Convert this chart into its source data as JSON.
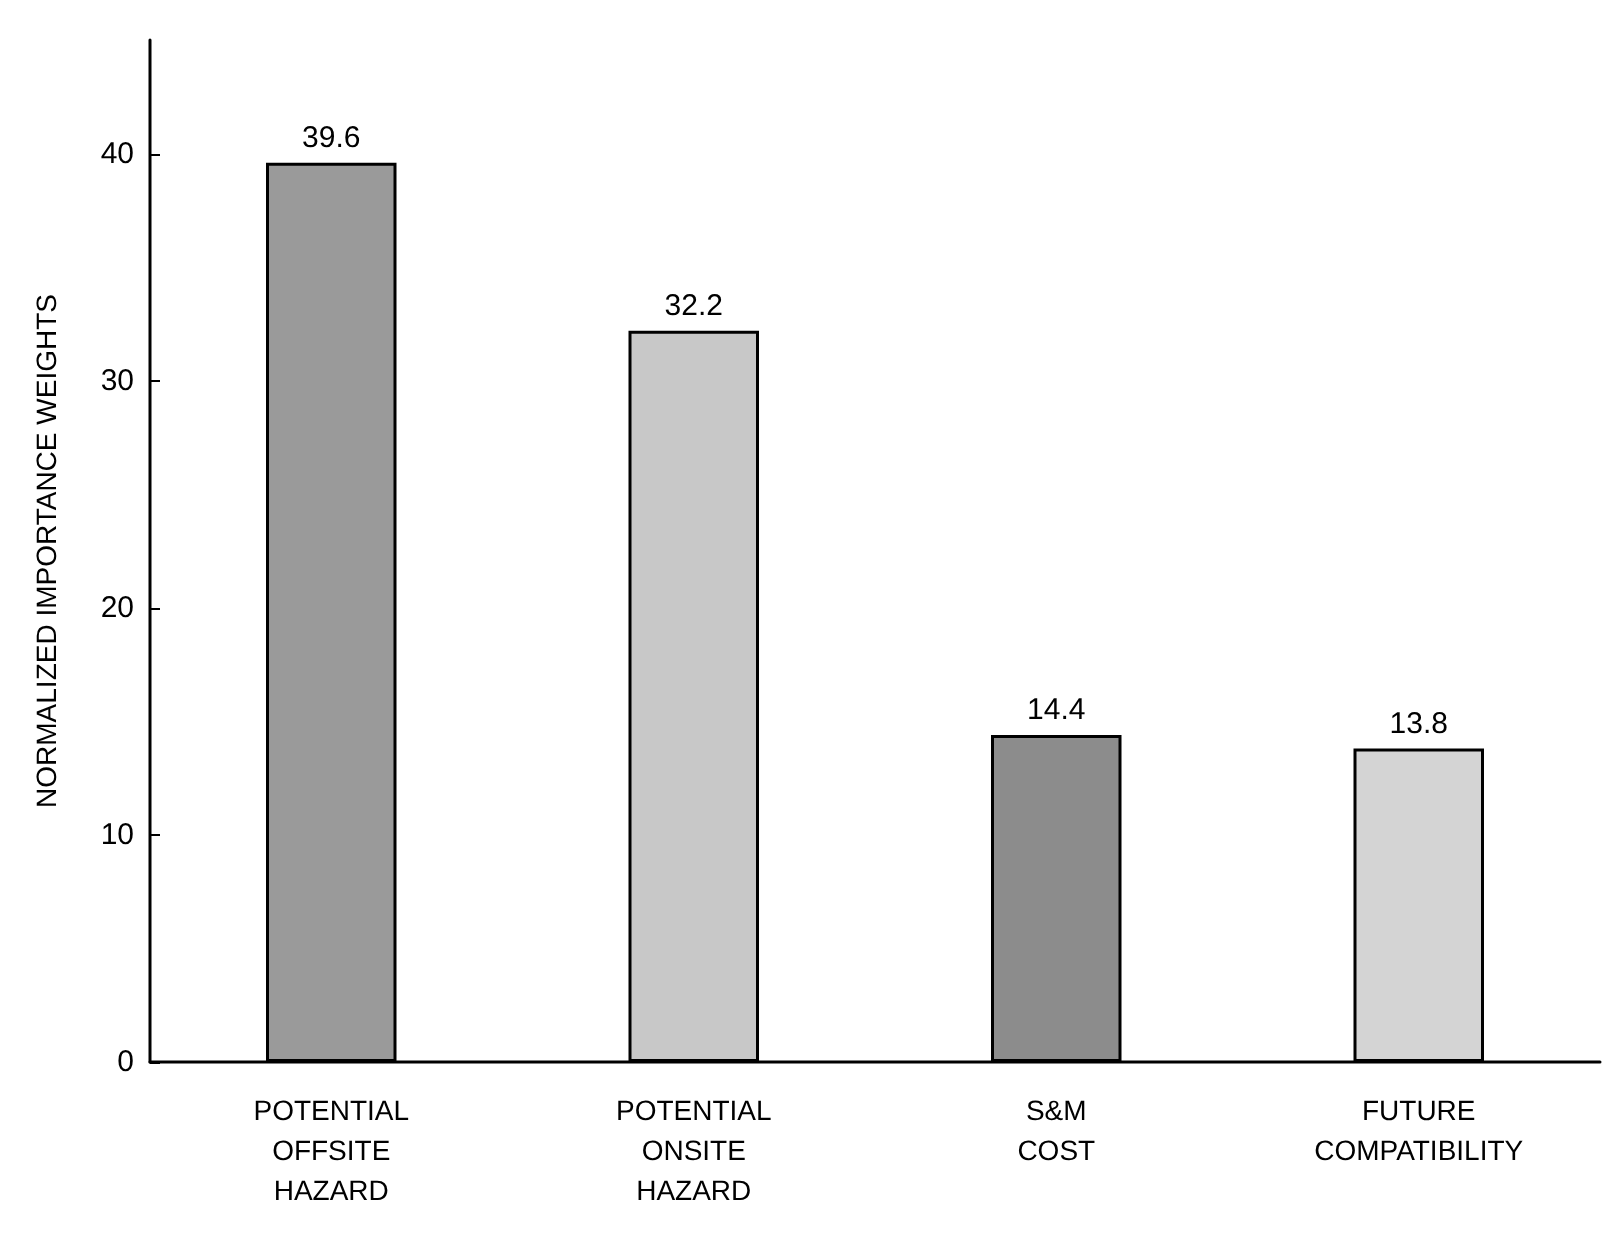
{
  "chart_data": {
    "type": "bar",
    "ylabel": "NORMALIZED IMPORTANCE WEIGHTS",
    "categories": [
      "POTENTIAL\nOFFSITE\nHAZARD",
      "POTENTIAL\nONSITE\nHAZARD",
      "S&M\nCOST",
      "FUTURE\nCOMPATIBILITY"
    ],
    "values": [
      39.6,
      32.2,
      14.4,
      13.8
    ],
    "colors": [
      "#9a9a9a",
      "#c8c8c8",
      "#8c8c8c",
      "#d4d4d4"
    ],
    "data_labels": true,
    "ylim": [
      0,
      45
    ],
    "yticks": [
      0,
      10,
      20,
      30,
      40
    ],
    "grid": false
  }
}
